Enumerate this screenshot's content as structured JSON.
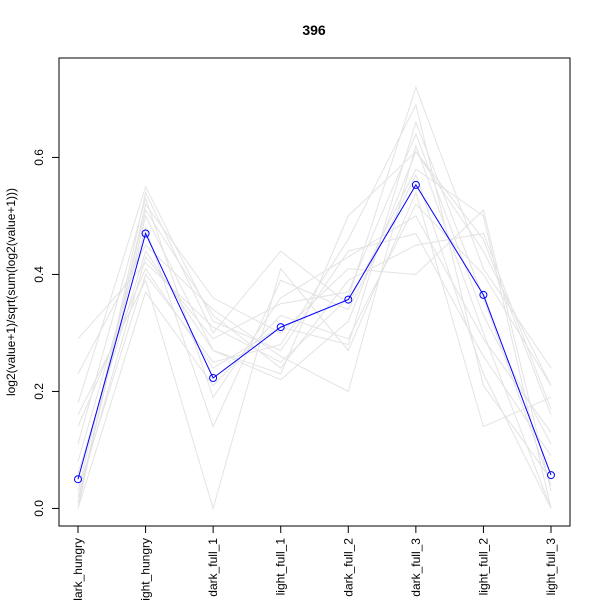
{
  "chart_data": {
    "type": "line",
    "title": "396",
    "xlabel": "",
    "ylabel": "log2(value+1)/sqrt(sum(log2(value+1)))",
    "categories": [
      "dark_hungry",
      "light_hungry",
      "dark_full_1",
      "light_full_1",
      "dark_full_2",
      "dark_full_3",
      "light_full_2",
      "light_full_3"
    ],
    "ylim": [
      -0.03,
      0.77
    ],
    "yticks": [
      0.0,
      0.2,
      0.4,
      0.6
    ],
    "ytick_labels": [
      "0.0",
      "0.2",
      "0.4",
      "0.6"
    ],
    "grid": false,
    "series": [
      {
        "values": [
          0.05,
          0.47,
          0.223,
          0.31,
          0.357,
          0.553,
          0.365,
          0.057
        ],
        "color": "#0000ff",
        "marker": "circle"
      }
    ],
    "background_series": [
      {
        "values": [
          0.0,
          0.54,
          0.3,
          0.44,
          0.35,
          0.58,
          0.5,
          0.0
        ],
        "color": "#e3e3e3"
      },
      {
        "values": [
          0.29,
          0.42,
          0.31,
          0.25,
          0.36,
          0.72,
          0.41,
          0.24
        ],
        "color": "#e3e3e3"
      },
      {
        "values": [
          0.01,
          0.5,
          0.27,
          0.23,
          0.5,
          0.61,
          0.44,
          0.21
        ],
        "color": "#e3e3e3"
      },
      {
        "values": [
          0.23,
          0.45,
          0.34,
          0.26,
          0.2,
          0.62,
          0.3,
          0.0
        ],
        "color": "#e3e3e3"
      },
      {
        "values": [
          0.11,
          0.53,
          0.19,
          0.36,
          0.43,
          0.5,
          0.29,
          0.13
        ],
        "color": "#e3e3e3"
      },
      {
        "values": [
          0.03,
          0.4,
          0.25,
          0.28,
          0.46,
          0.69,
          0.21,
          0.05
        ],
        "color": "#e3e3e3"
      },
      {
        "values": [
          0.16,
          0.39,
          0.0,
          0.41,
          0.27,
          0.54,
          0.14,
          0.19
        ],
        "color": "#e3e3e3"
      },
      {
        "values": [
          0.01,
          0.52,
          0.36,
          0.3,
          0.41,
          0.4,
          0.51,
          0.03
        ],
        "color": "#e3e3e3"
      },
      {
        "values": [
          0.06,
          0.44,
          0.27,
          0.22,
          0.32,
          0.61,
          0.46,
          0.16
        ],
        "color": "#e3e3e3"
      },
      {
        "values": [
          0.18,
          0.55,
          0.32,
          0.27,
          0.44,
          0.47,
          0.26,
          0.09
        ],
        "color": "#e3e3e3"
      },
      {
        "values": [
          0.02,
          0.43,
          0.29,
          0.35,
          0.37,
          0.64,
          0.33,
          0.11
        ],
        "color": "#e3e3e3"
      },
      {
        "values": [
          0.0,
          0.37,
          0.21,
          0.33,
          0.29,
          0.52,
          0.4,
          0.21
        ],
        "color": "#e3e3e3"
      },
      {
        "values": [
          0.08,
          0.48,
          0.14,
          0.39,
          0.34,
          0.57,
          0.23,
          0.0
        ],
        "color": "#e3e3e3"
      },
      {
        "values": [
          0.03,
          0.51,
          0.33,
          0.24,
          0.39,
          0.45,
          0.47,
          0.17
        ],
        "color": "#e3e3e3"
      },
      {
        "values": [
          0.14,
          0.41,
          0.24,
          0.31,
          0.28,
          0.66,
          0.36,
          0.04
        ],
        "color": "#e3e3e3"
      }
    ]
  }
}
